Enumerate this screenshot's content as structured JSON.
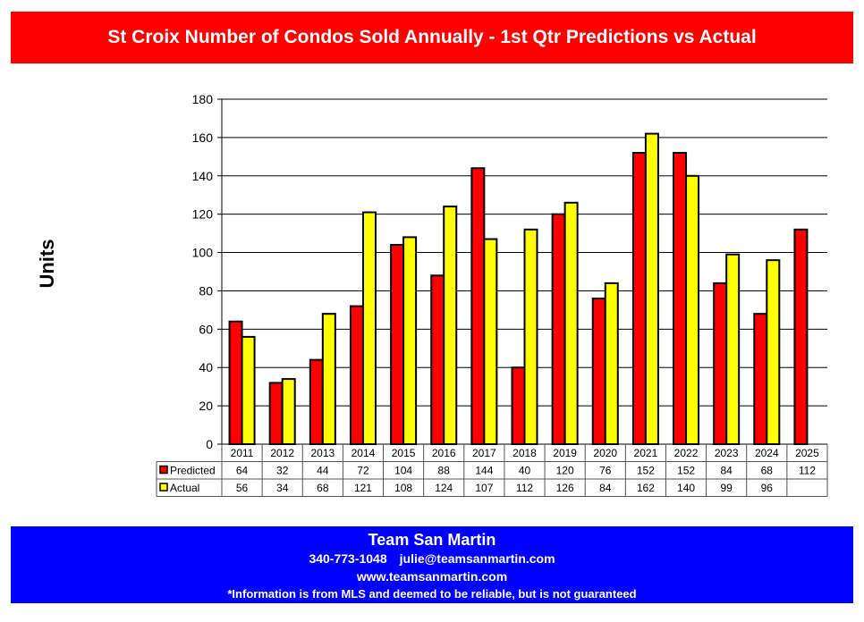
{
  "header": {
    "title": "St Croix Number of Condos Sold  Annually - 1st Qtr Predictions vs Actual"
  },
  "footer": {
    "company": "Team San Martin",
    "phone": "340-773-1048",
    "email": "julie@teamsanmartin.com",
    "website": "www.teamsanmartin.com",
    "disclaimer": "*Information is from MLS and deemed to be reliable, but is not guaranteed"
  },
  "colors": {
    "predicted": "#ff0000",
    "actual": "#ffff00",
    "title_bg": "#ff0000",
    "footer_bg": "#0000ff"
  },
  "chart_data": {
    "type": "bar",
    "title": "St Croix Number of Condos Sold  Annually - 1st Qtr Predictions vs Actual",
    "xlabel": "",
    "ylabel": "Units",
    "ylim": [
      0,
      180
    ],
    "yticks": [
      0,
      20,
      40,
      60,
      80,
      100,
      120,
      140,
      160,
      180
    ],
    "grid": true,
    "legend": "data-table-left",
    "categories": [
      "2011",
      "2012",
      "2013",
      "2014",
      "2015",
      "2016",
      "2017",
      "2018",
      "2019",
      "2020",
      "2021",
      "2022",
      "2023",
      "2024",
      "2025"
    ],
    "series": [
      {
        "name": "Predicted",
        "color": "#ff0000",
        "values": [
          64,
          32,
          44,
          72,
          104,
          88,
          144,
          40,
          120,
          76,
          152,
          152,
          84,
          68,
          112
        ]
      },
      {
        "name": "Actual",
        "color": "#ffff00",
        "values": [
          56,
          34,
          68,
          121,
          108,
          124,
          107,
          112,
          126,
          84,
          162,
          140,
          99,
          96,
          null
        ]
      }
    ]
  }
}
